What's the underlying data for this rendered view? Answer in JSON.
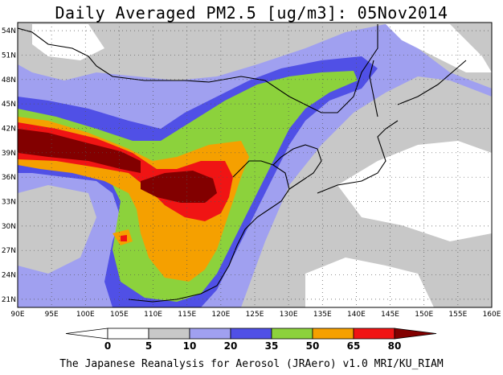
{
  "title": "Daily Averaged PM2.5 [ug/m3]: 05Nov2014",
  "footer": "The Japanese Reanalysis for Aerosol (JRAero) v1.0 MRI/KU_RIAM",
  "map": {
    "lon_labels": [
      "90E",
      "95E",
      "100E",
      "105E",
      "110E",
      "115E",
      "120E",
      "125E",
      "130E",
      "135E",
      "140E",
      "145E",
      "150E",
      "155E",
      "160E"
    ],
    "lat_labels": [
      "54N",
      "51N",
      "48N",
      "45N",
      "42N",
      "39N",
      "36N",
      "33N",
      "30N",
      "27N",
      "24N",
      "21N"
    ],
    "lon_range": [
      90,
      160
    ],
    "lat_range": [
      20,
      55
    ],
    "grid": true,
    "gridline_style": "dotted"
  },
  "colorbar": {
    "levels": [
      "0",
      "5",
      "10",
      "20",
      "35",
      "50",
      "65",
      "80"
    ],
    "colors": [
      "#ffffff",
      "#c8c8c8",
      "#a0a0f0",
      "#5050e6",
      "#8cd23c",
      "#f5a000",
      "#f01414",
      "#820000"
    ]
  },
  "colors": {
    "below": "#ffffff",
    "grey": "#c8c8c8",
    "light_blue": "#a0a0f0",
    "blue": "#5050e6",
    "green": "#8cd23c",
    "orange": "#f5a000",
    "red": "#f01414",
    "dark_red": "#820000"
  }
}
